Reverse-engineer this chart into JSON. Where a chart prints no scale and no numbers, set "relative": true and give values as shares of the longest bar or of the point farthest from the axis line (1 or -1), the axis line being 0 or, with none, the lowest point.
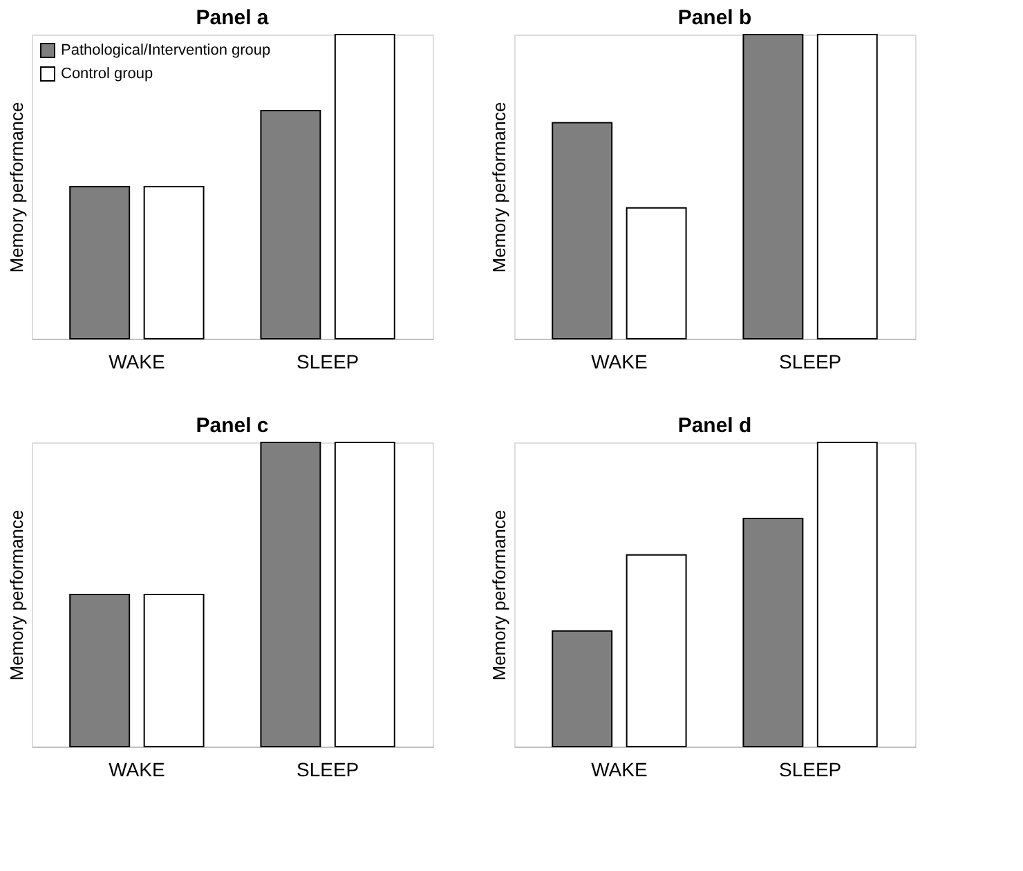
{
  "chart_data": [
    {
      "type": "bar",
      "title": "Panel a",
      "ylabel": "Memory performance",
      "relative": true,
      "categories": [
        "WAKE",
        "SLEEP"
      ],
      "legend": "top left",
      "series": [
        {
          "name": "Pathological/Intervention group",
          "color": "#7f7f7f",
          "values": [
            0.5,
            0.75
          ]
        },
        {
          "name": "Control group",
          "color": "#ffffff",
          "values": [
            0.5,
            1
          ]
        }
      ]
    },
    {
      "type": "bar",
      "title": "Panel b",
      "ylabel": "Memory performance",
      "relative": true,
      "categories": [
        "WAKE",
        "SLEEP"
      ],
      "series": [
        {
          "color": "#7f7f7f",
          "values": [
            0.71,
            1
          ]
        },
        {
          "color": "#ffffff",
          "values": [
            0.43,
            1
          ]
        }
      ]
    },
    {
      "type": "bar",
      "title": "Panel c",
      "ylabel": "Memory performance",
      "relative": true,
      "categories": [
        "WAKE",
        "SLEEP"
      ],
      "series": [
        {
          "color": "#7f7f7f",
          "values": [
            0.5,
            1
          ]
        },
        {
          "color": "#ffffff",
          "values": [
            0.5,
            1
          ]
        }
      ]
    },
    {
      "type": "bar",
      "title": "Panel d",
      "ylabel": "Memory performance",
      "relative": true,
      "categories": [
        "WAKE",
        "SLEEP"
      ],
      "series": [
        {
          "color": "#7f7f7f",
          "values": [
            0.38,
            0.75
          ]
        },
        {
          "color": "#ffffff",
          "values": [
            0.63,
            1
          ]
        }
      ]
    }
  ]
}
